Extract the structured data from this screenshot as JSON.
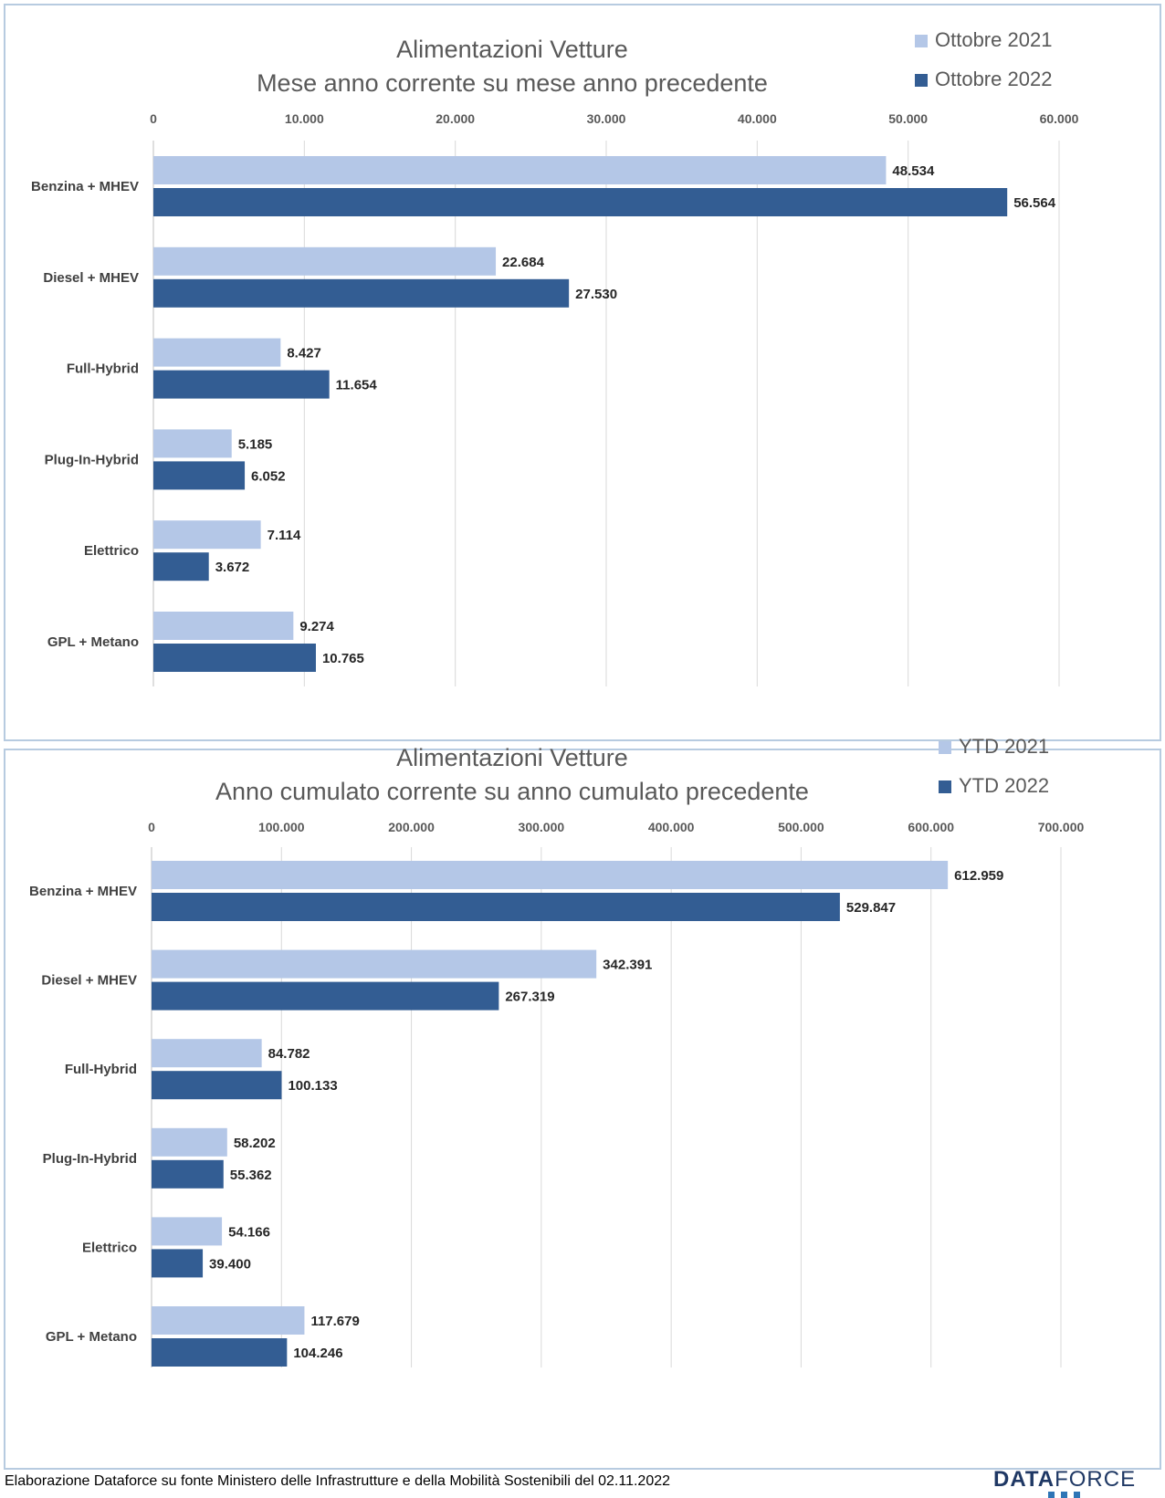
{
  "charts": [
    {
      "title_line1": "Alimentazioni Vetture",
      "title_line2": "Mese anno corrente su mese anno precedente",
      "legend": [
        "Ottobre 2021",
        "Ottobre 2022"
      ]
    },
    {
      "title_line1": "Alimentazioni Vetture",
      "title_line2": "Anno cumulato corrente su anno cumulato precedente",
      "legend": [
        "YTD 2021",
        "YTD 2022"
      ]
    }
  ],
  "colors": {
    "light": "#b4c7e7",
    "dark": "#335d93",
    "grid": "#d9d9d9",
    "border": "#b7cbe0"
  },
  "chart_data": [
    {
      "type": "bar",
      "orientation": "horizontal",
      "title": "Alimentazioni Vetture — Mese anno corrente su mese anno precedente",
      "categories": [
        "Benzina + MHEV",
        "Diesel + MHEV",
        "Full-Hybrid",
        "Plug-In-Hybrid",
        "Elettrico",
        "GPL + Metano"
      ],
      "series": [
        {
          "name": "Ottobre 2021",
          "values": [
            48534,
            22684,
            8427,
            5185,
            7114,
            9274
          ],
          "labels": [
            "48.534",
            "22.684",
            "8.427",
            "5.185",
            "7.114",
            "9.274"
          ]
        },
        {
          "name": "Ottobre 2022",
          "values": [
            56564,
            27530,
            11654,
            6052,
            3672,
            10765
          ],
          "labels": [
            "56.564",
            "27.530",
            "11.654",
            "6.052",
            "3.672",
            "10.765"
          ]
        }
      ],
      "xlim": [
        0,
        60000
      ],
      "ticks": [
        "0",
        "10.000",
        "20.000",
        "30.000",
        "40.000",
        "50.000",
        "60.000"
      ],
      "legend_position": "top-right",
      "grid": true
    },
    {
      "type": "bar",
      "orientation": "horizontal",
      "title": "Alimentazioni Vetture — Anno cumulato corrente su anno cumulato precedente",
      "categories": [
        "Benzina + MHEV",
        "Diesel + MHEV",
        "Full-Hybrid",
        "Plug-In-Hybrid",
        "Elettrico",
        "GPL + Metano"
      ],
      "series": [
        {
          "name": "YTD 2021",
          "values": [
            612959,
            342391,
            84782,
            58202,
            54166,
            117679
          ],
          "labels": [
            "612.959",
            "342.391",
            "84.782",
            "58.202",
            "54.166",
            "117.679"
          ]
        },
        {
          "name": "YTD 2022",
          "values": [
            529847,
            267319,
            100133,
            55362,
            39400,
            104246
          ],
          "labels": [
            "529.847",
            "267.319",
            "100.133",
            "55.362",
            "39.400",
            "104.246"
          ]
        }
      ],
      "xlim": [
        0,
        700000
      ],
      "ticks": [
        "0",
        "100.000",
        "200.000",
        "300.000",
        "400.000",
        "500.000",
        "600.000",
        "700.000"
      ],
      "legend_position": "top-right",
      "grid": true
    }
  ],
  "footer": {
    "source_note": "Elaborazione Dataforce su fonte Ministero delle Infrastrutture e della Mobilità Sostenibili del 02.11.2022",
    "logo_bold": "DATA",
    "logo_light": "FORCE"
  }
}
